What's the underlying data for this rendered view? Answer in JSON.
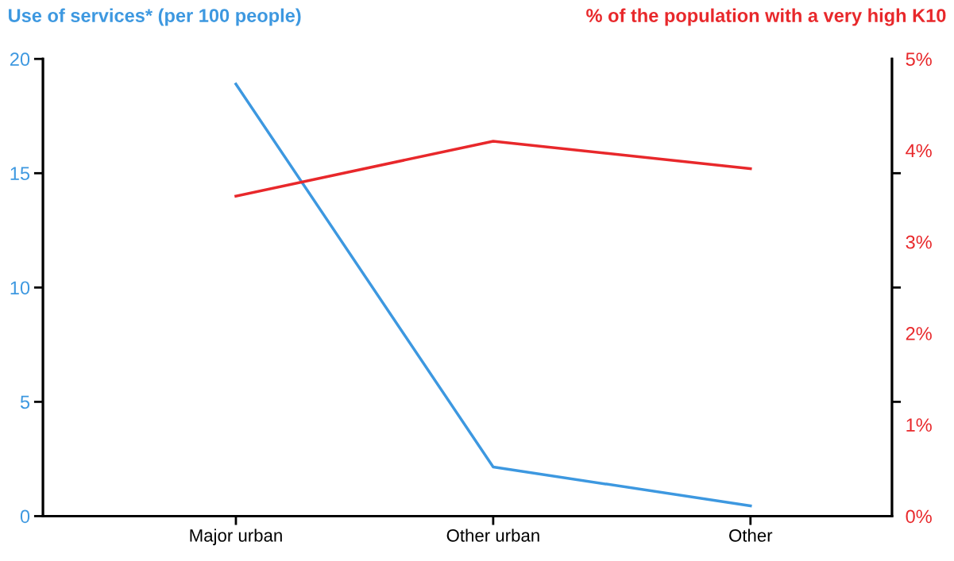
{
  "chart_data": {
    "type": "line",
    "ylabel": "Use of services* (per 100 people)",
    "y2label": "% of the population with a very high K10",
    "categories": [
      "Major urban",
      "Other urban",
      "Other"
    ],
    "series": [
      {
        "color": "#3d98e0",
        "values": [
          18.9,
          2.15,
          0.45
        ]
      },
      {
        "color": "#e8282b",
        "values": [
          3.5,
          4.1,
          3.8
        ],
        "axis": "y2"
      }
    ],
    "ylim": [
      0,
      20
    ],
    "yticks": [
      0,
      5,
      10,
      15,
      20
    ],
    "y2lim": [
      0,
      5
    ],
    "y2ticks": [
      {
        "value": 0,
        "label": "0%"
      },
      {
        "value": 1,
        "label": "1%"
      },
      {
        "value": 2,
        "label": "2%"
      },
      {
        "value": 3,
        "label": "3%"
      },
      {
        "value": 4,
        "label": "4%"
      },
      {
        "value": 5,
        "label": "5%"
      },
      {
        "value": 1.25,
        "label": null
      },
      {
        "value": 2.5,
        "label": null
      },
      {
        "value": 3.75,
        "label": null
      }
    ],
    "grid": false,
    "marker": "none",
    "line_style": "solid"
  }
}
